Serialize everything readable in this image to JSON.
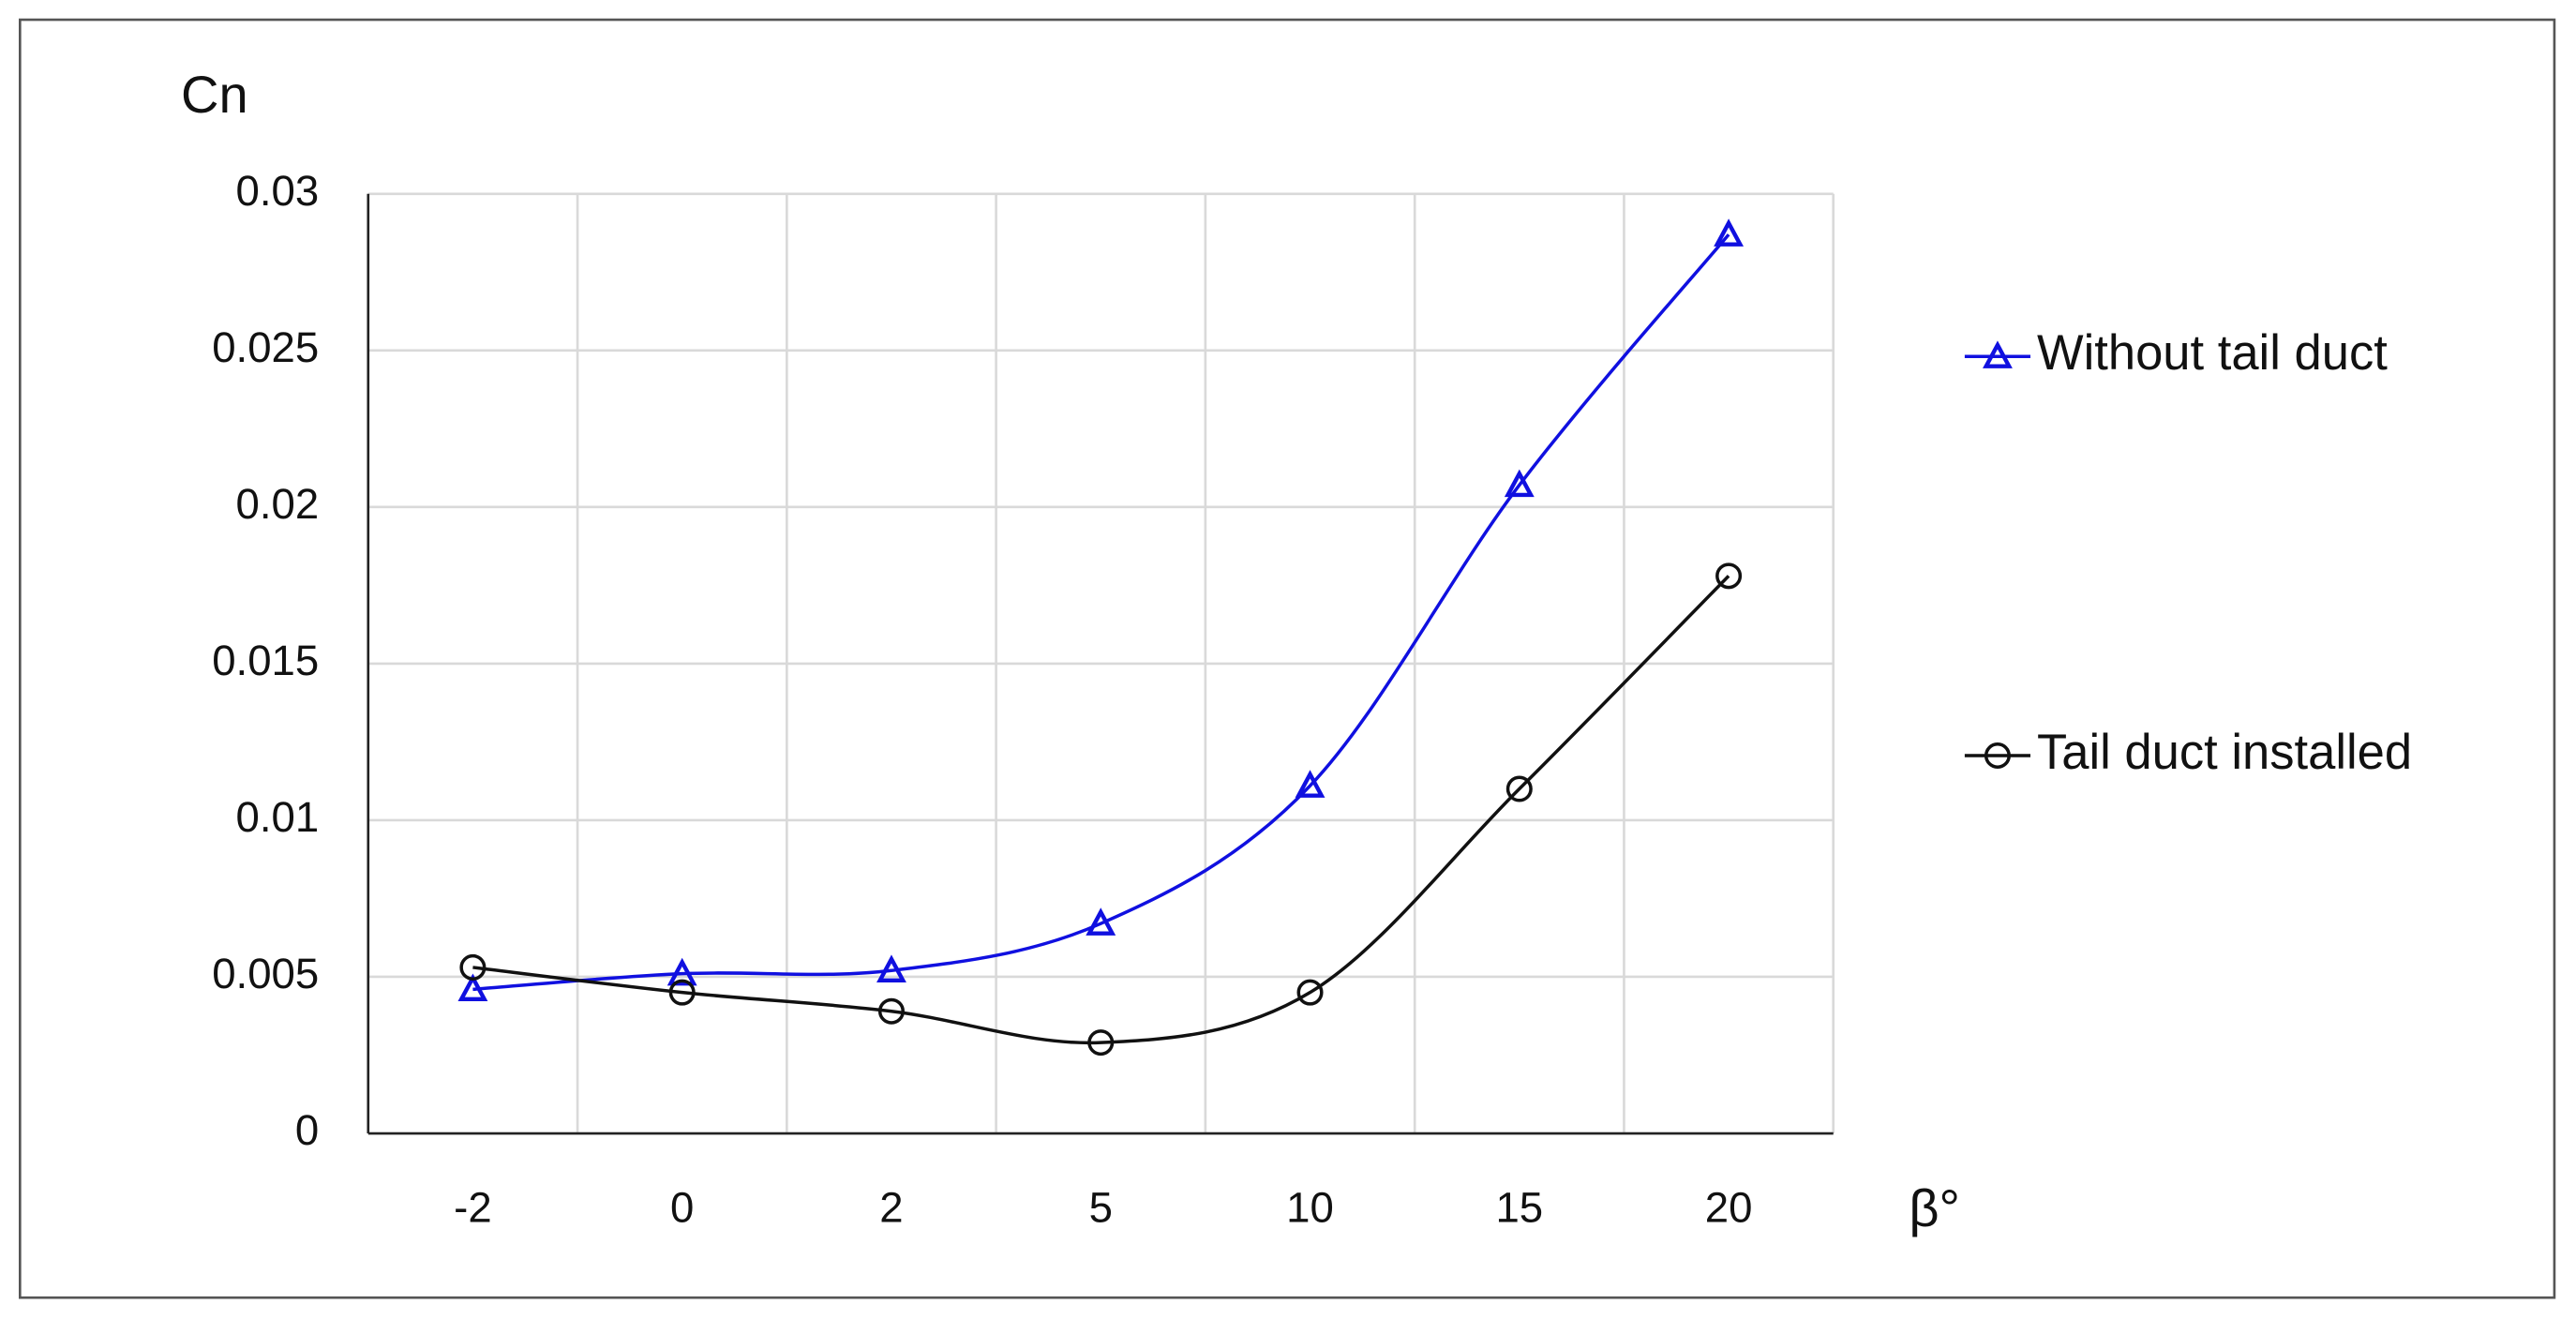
{
  "chart_data": {
    "type": "line",
    "y_label": "Cn",
    "x_label": "β°",
    "categories": [
      "-2",
      "0",
      "2",
      "5",
      "10",
      "15",
      "20"
    ],
    "series": [
      {
        "name": "Without tail duct",
        "color": "#1010e0",
        "marker": "triangle",
        "values": [
          0.0046,
          0.0051,
          0.0052,
          0.0067,
          0.0111,
          0.0207,
          0.0287
        ]
      },
      {
        "name": "Tail duct installed",
        "color": "#111111",
        "marker": "circle",
        "values": [
          0.0053,
          0.0045,
          0.0039,
          0.0029,
          0.0045,
          0.011,
          0.0178
        ]
      }
    ],
    "ylim": [
      0,
      0.03
    ],
    "yticks": [
      0,
      0.005,
      0.01,
      0.015,
      0.02,
      0.025,
      0.03
    ],
    "grid": true,
    "smooth": true,
    "legend": "right"
  }
}
